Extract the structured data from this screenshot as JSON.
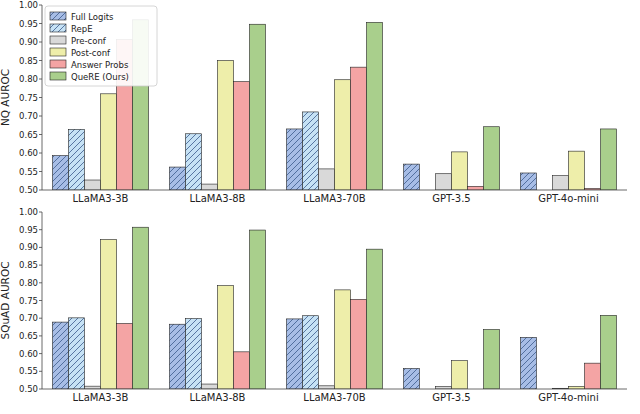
{
  "chart_data": [
    {
      "type": "bar",
      "ylabel": "NQ AUROC",
      "categories": [
        "LLaMA3-3B",
        "LLaMA3-8B",
        "LLaMA3-70B",
        "GPT-3.5",
        "GPT-4o-mini"
      ],
      "series": [
        {
          "name": "Full Logits",
          "color": "#a7bde6",
          "line_style": "hatched",
          "values": [
            0.593,
            0.562,
            0.665,
            0.57,
            0.546
          ]
        },
        {
          "name": "RepE",
          "color": "#c6e2f5",
          "line_style": "hatched",
          "values": [
            0.664,
            0.652,
            0.711,
            null,
            null
          ]
        },
        {
          "name": "Pre-conf",
          "color": "#d9d9d9",
          "values": [
            0.527,
            0.516,
            0.557,
            0.544,
            0.539
          ]
        },
        {
          "name": "Post-conf",
          "color": "#eeeeaa",
          "values": [
            0.76,
            0.85,
            0.798,
            0.603,
            0.605
          ]
        },
        {
          "name": "Answer Probs",
          "color": "#f4a4a4",
          "values": [
            0.907,
            0.793,
            0.832,
            0.51,
            0.504
          ]
        },
        {
          "name": "QueRE (Ours)",
          "color": "#a9cf8c",
          "values": [
            0.96,
            0.948,
            0.953,
            0.671,
            0.665
          ]
        }
      ],
      "ylim": [
        0.5,
        1.0
      ],
      "yticks": [
        {
          "value": 0.5,
          "label": "0.50"
        },
        {
          "value": 0.55,
          "label": "0.55"
        },
        {
          "value": 0.6,
          "label": "0.60"
        },
        {
          "value": 0.65,
          "label": "0.65"
        },
        {
          "value": 0.7,
          "label": "0.70"
        },
        {
          "value": 0.75,
          "label": "0.75"
        },
        {
          "value": 0.8,
          "label": "0.80"
        },
        {
          "value": 0.85,
          "label": "0.85"
        },
        {
          "value": 0.9,
          "label": "0.90"
        },
        {
          "value": 0.95,
          "label": "0.95"
        },
        {
          "value": 1.0,
          "label": "1.00"
        }
      ],
      "grid": false,
      "legend": "upper left"
    },
    {
      "type": "bar",
      "ylabel": "SQuAD AUROC",
      "categories": [
        "LLaMA3-3B",
        "LLaMA3-8B",
        "LLaMA3-70B",
        "GPT-3.5",
        "GPT-4o-mini"
      ],
      "series": [
        {
          "name": "Full Logits",
          "color": "#a7bde6",
          "line_style": "hatched",
          "values": [
            0.689,
            0.683,
            0.698,
            0.558,
            0.646
          ]
        },
        {
          "name": "RepE",
          "color": "#c6e2f5",
          "line_style": "hatched",
          "values": [
            0.701,
            0.699,
            0.707,
            null,
            null
          ]
        },
        {
          "name": "Pre-conf",
          "color": "#d9d9d9",
          "values": [
            0.508,
            0.514,
            0.509,
            0.507,
            0.502
          ]
        },
        {
          "name": "Post-conf",
          "color": "#eeeeaa",
          "values": [
            0.922,
            0.792,
            0.78,
            0.58,
            0.507
          ]
        },
        {
          "name": "Answer Probs",
          "color": "#f4a4a4",
          "values": [
            0.685,
            0.605,
            0.753,
            null,
            0.573
          ]
        },
        {
          "name": "QueRE (Ours)",
          "color": "#a9cf8c",
          "values": [
            0.957,
            0.949,
            0.895,
            0.668,
            0.708
          ]
        }
      ],
      "ylim": [
        0.5,
        1.0
      ],
      "yticks": [
        {
          "value": 0.5,
          "label": "0.50"
        },
        {
          "value": 0.55,
          "label": "0.55"
        },
        {
          "value": 0.6,
          "label": "0.60"
        },
        {
          "value": 0.65,
          "label": "0.65"
        },
        {
          "value": 0.7,
          "label": "0.70"
        },
        {
          "value": 0.75,
          "label": "0.75"
        },
        {
          "value": 0.8,
          "label": "0.80"
        },
        {
          "value": 0.85,
          "label": "0.85"
        },
        {
          "value": 0.9,
          "label": "0.90"
        },
        {
          "value": 0.95,
          "label": "0.95"
        },
        {
          "value": 1.0,
          "label": "1.00"
        }
      ],
      "grid": false
    }
  ]
}
